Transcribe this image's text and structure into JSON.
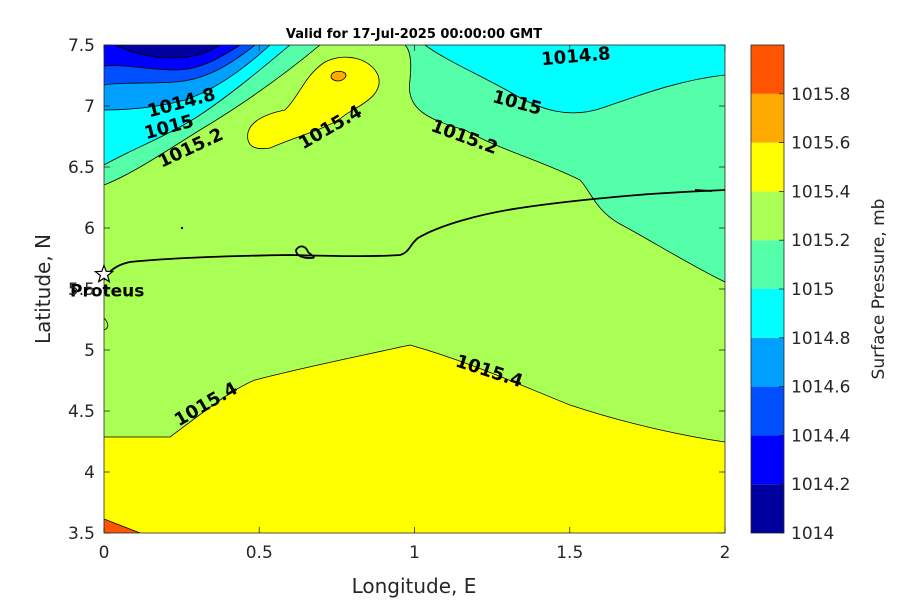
{
  "chart_data": {
    "type": "contour",
    "title": "Valid for 17-Jul-2025 00:00:00 GMT",
    "xlabel": "Longitude, E",
    "ylabel": "Latitude, N",
    "xlim": [
      0,
      2
    ],
    "ylim": [
      3.5,
      7.5
    ],
    "x_ticks": [
      "0",
      "0.5",
      "1",
      "1.5",
      "2"
    ],
    "y_ticks": [
      "3.5",
      "4",
      "4.5",
      "5",
      "5.5",
      "6",
      "6.5",
      "7",
      "7.5"
    ],
    "x_tick_values": [
      0,
      0.5,
      1,
      1.5,
      2
    ],
    "y_tick_values": [
      3.5,
      4,
      4.5,
      5,
      5.5,
      6,
      6.5,
      7,
      7.5
    ],
    "colorbar": {
      "label": "Surface Pressure, mb",
      "levels": [
        1014,
        1014.2,
        1014.4,
        1014.6,
        1014.8,
        1015,
        1015.2,
        1015.4,
        1015.6,
        1015.8
      ],
      "tick_labels": [
        "1014",
        "1014.2",
        "1014.4",
        "1014.6",
        "1014.8",
        "1015",
        "1015.2",
        "1015.4",
        "1015.6",
        "1015.8"
      ],
      "colors": [
        "#00009f",
        "#0000ff",
        "#0050ff",
        "#00a0ff",
        "#00ffff",
        "#55ffaa",
        "#aaff55",
        "#ffff00",
        "#ffaa00",
        "#ff5500"
      ]
    },
    "contour_labels": [
      {
        "text": "1014.8",
        "lon": 0.25,
        "lat": 7.02,
        "angle": -15
      },
      {
        "text": "1015",
        "lon": 0.21,
        "lat": 6.82,
        "angle": -15
      },
      {
        "text": "1015.2",
        "lon": 0.28,
        "lat": 6.65,
        "angle": -25
      },
      {
        "text": "1015.4",
        "lon": 0.73,
        "lat": 6.82,
        "angle": -30
      },
      {
        "text": "1014.8",
        "lon": 1.52,
        "lat": 7.4,
        "angle": -5
      },
      {
        "text": "1015",
        "lon": 1.33,
        "lat": 7.02,
        "angle": 15
      },
      {
        "text": "1015.2",
        "lon": 1.16,
        "lat": 6.74,
        "angle": 20
      },
      {
        "text": "1015.4",
        "lon": 1.24,
        "lat": 4.82,
        "angle": 18
      },
      {
        "text": "1015.4",
        "lon": 0.33,
        "lat": 4.55,
        "angle": -30
      }
    ],
    "station": {
      "name": "Proteus",
      "lon": 0.0,
      "lat": 5.62
    }
  }
}
